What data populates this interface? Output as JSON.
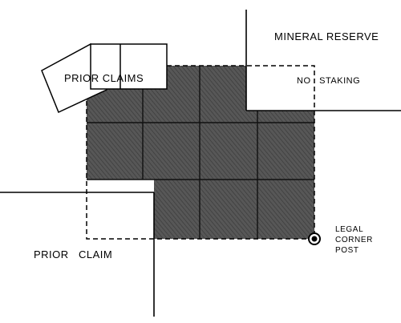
{
  "labels": {
    "mineral_reserve": "MINERAL RESERVE",
    "no_staking": "NO   STAKING",
    "prior_claims": "PRIOR CLAIMS",
    "prior_claim": "PRIOR   CLAIM",
    "legal_corner_post": [
      "LEGAL",
      "CORNER",
      "POST"
    ]
  },
  "colors": {
    "claim_fill": "#5a5a5a",
    "line": "#000000",
    "background": "#ffffff"
  }
}
